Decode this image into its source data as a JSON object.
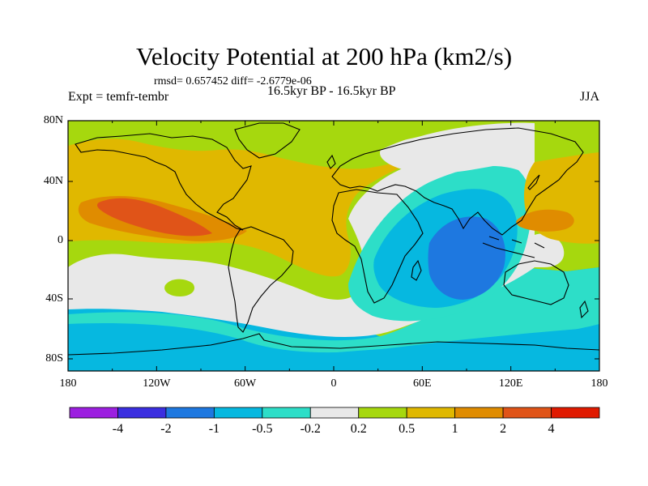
{
  "title": "Velocity Potential at 200 hPa (km2/s)",
  "stats": "rmsd= 0.657452 diff= -2.6779e-06",
  "left_label": "Expt = temfr-tembr",
  "center_label": "16.5kyr BP - 16.5kyr BP",
  "right_label": "JJA",
  "lat_ticks": [
    "80N",
    "40N",
    "0",
    "40S",
    "80S"
  ],
  "lon_ticks": [
    "180",
    "120W",
    "60W",
    "0",
    "60E",
    "120E",
    "180"
  ],
  "colorbar": {
    "labels": [
      "-4",
      "-2",
      "-1",
      "-0.5",
      "-0.2",
      "0.2",
      "0.5",
      "1",
      "2",
      "4"
    ],
    "colors": [
      "#9c1fe0",
      "#3b2ee0",
      "#1e78e0",
      "#06b8e0",
      "#2ddec8",
      "#e8e8e8",
      "#a6d80e",
      "#e0b800",
      "#e08c00",
      "#e05418",
      "#e01a00"
    ]
  },
  "map_colors": {
    "background": "#a6d80e",
    "positive_05_1": "#e0b800",
    "positive_1_2": "#e08c00",
    "positive_2_4": "#e05418",
    "near_zero": "#e8e8e8",
    "negative_02_05": "#2ddec8",
    "negative_05_1": "#06b8e0",
    "negative_1_2": "#1e78e0",
    "coastline": "#000000"
  }
}
